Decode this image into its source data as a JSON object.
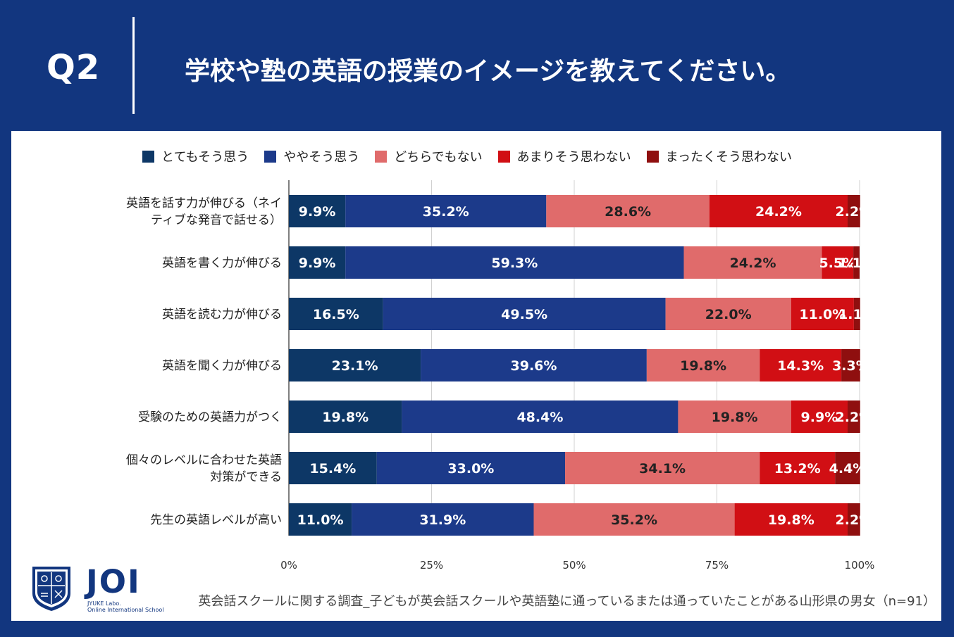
{
  "header": {
    "q_label": "Q2",
    "title": "学校や塾の英語の授業のイメージを教えてください。"
  },
  "colors": {
    "background": "#12367f",
    "series": [
      "#0d3766",
      "#1c3a8a",
      "#e06b6b",
      "#d10f14",
      "#8f0f0f"
    ]
  },
  "chart_data": {
    "type": "bar",
    "orientation": "horizontal",
    "stacked": true,
    "categories": [
      [
        "英語を話す力が伸びる（ネイ",
        "ティブな発音で話せる）"
      ],
      [
        "英語を書く力が伸びる"
      ],
      [
        "英語を読む力が伸びる"
      ],
      [
        "英語を聞く力が伸びる"
      ],
      [
        "受験のための英語力がつく"
      ],
      [
        "個々のレベルに合わせた英語",
        "対策ができる"
      ],
      [
        "先生の英語レベルが高い"
      ]
    ],
    "series": [
      {
        "name": "とてもそう思う",
        "values": [
          9.9,
          9.9,
          16.5,
          23.1,
          19.8,
          15.4,
          11.0
        ]
      },
      {
        "name": "ややそう思う",
        "values": [
          35.2,
          59.3,
          49.5,
          39.6,
          48.4,
          33.0,
          31.9
        ]
      },
      {
        "name": "どちらでもない",
        "values": [
          28.6,
          24.2,
          22.0,
          19.8,
          19.8,
          34.1,
          35.2
        ]
      },
      {
        "name": "あまりそう思わない",
        "values": [
          24.2,
          5.5,
          11.0,
          14.3,
          9.9,
          13.2,
          19.8
        ]
      },
      {
        "name": "まったくそう思わない",
        "values": [
          2.2,
          1.1,
          1.1,
          3.3,
          2.2,
          4.4,
          2.2
        ]
      }
    ],
    "data_labels": [
      [
        "9.9%",
        "35.2%",
        "28.6%",
        "24.2%",
        "2.2%"
      ],
      [
        "9.9%",
        "59.3%",
        "24.2%",
        "5.5%",
        "1.1%"
      ],
      [
        "16.5%",
        "49.5%",
        "22.0%",
        "11.0%",
        "1.1%"
      ],
      [
        "23.1%",
        "39.6%",
        "19.8%",
        "14.3%",
        "3.3%"
      ],
      [
        "19.8%",
        "48.4%",
        "19.8%",
        "9.9%",
        "2.2%"
      ],
      [
        "15.4%",
        "33.0%",
        "34.1%",
        "13.2%",
        "4.4%"
      ],
      [
        "11.0%",
        "31.9%",
        "35.2%",
        "19.8%",
        "2.2%"
      ]
    ],
    "x_ticks": [
      "0%",
      "25%",
      "50%",
      "75%",
      "100%"
    ],
    "xlim": [
      0,
      100
    ],
    "legend": "top"
  },
  "logo": {
    "text": "JOI",
    "sub1": "JYUKE Labo.",
    "sub2": "Online International School"
  },
  "footer": {
    "note": "英会話スクールに関する調査_子どもが英会話スクールや英語塾に通っているまたは通っていたことがある山形県の男女（n=91）"
  }
}
